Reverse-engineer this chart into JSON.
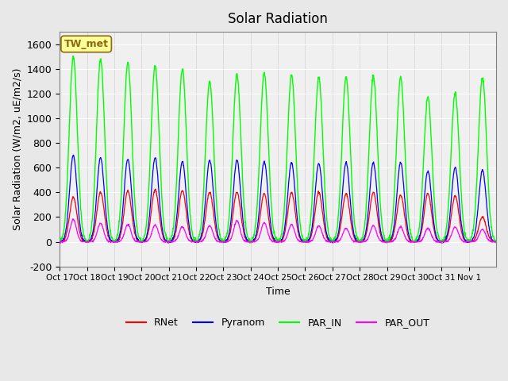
{
  "title": "Solar Radiation",
  "ylabel": "Solar Radiation (W/m2, uE/m2/s)",
  "xlabel": "Time",
  "ylim": [
    -200,
    1700
  ],
  "yticks": [
    -200,
    0,
    200,
    400,
    600,
    800,
    1000,
    1200,
    1400,
    1600
  ],
  "background_color": "#e8e8e8",
  "plot_bg_color": "#f0f0f0",
  "legend_labels": [
    "RNet",
    "Pyranom",
    "PAR_IN",
    "PAR_OUT"
  ],
  "legend_colors": [
    "red",
    "blue",
    "lime",
    "magenta"
  ],
  "station_label": "TW_met",
  "station_label_color": "#8B6914",
  "station_box_color": "#ffff99",
  "n_days": 16,
  "start_day": 17,
  "tick_labels": [
    "Oct 17",
    "Oct 18",
    "Oct 19",
    "Oct 20",
    "Oct 21",
    "Oct 22",
    "Oct 23",
    "Oct 24",
    "Oct 25",
    "Oct 26",
    "Oct 27",
    "Oct 28",
    "Oct 29",
    "Oct 30",
    "Oct 31",
    "Nov 1"
  ],
  "par_in_peaks": [
    1500,
    1480,
    1450,
    1430,
    1400,
    1300,
    1350,
    1370,
    1350,
    1330,
    1330,
    1340,
    1330,
    1170,
    1200,
    1330
  ],
  "pyranom_peaks": [
    700,
    680,
    670,
    680,
    650,
    660,
    660,
    650,
    640,
    635,
    640,
    640,
    640,
    570,
    600,
    580
  ],
  "rnet_peaks": [
    360,
    400,
    410,
    420,
    415,
    400,
    400,
    390,
    400,
    400,
    390,
    400,
    380,
    390,
    370,
    200
  ],
  "par_out_peaks": [
    180,
    150,
    140,
    135,
    120,
    130,
    170,
    155,
    140,
    130,
    110,
    130,
    120,
    110,
    120,
    100
  ],
  "rnet_night": -80
}
